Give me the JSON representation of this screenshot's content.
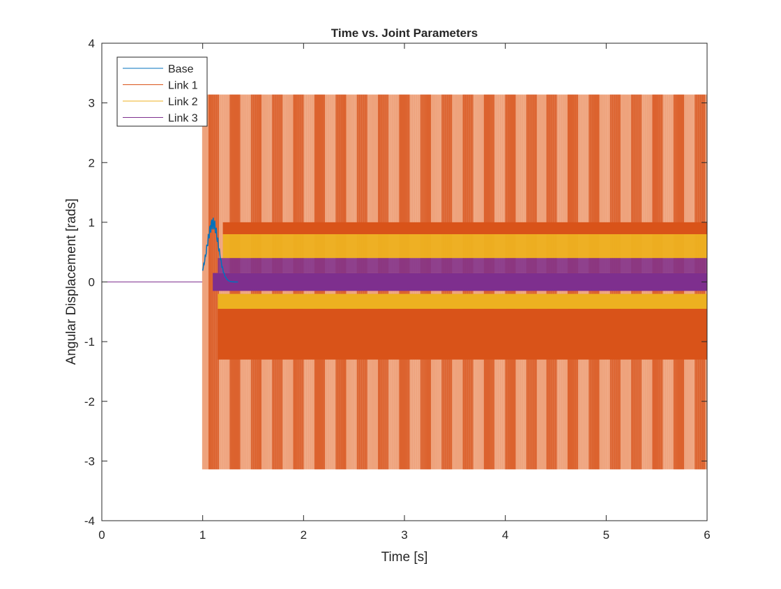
{
  "chart_data": {
    "type": "line",
    "title": "Time vs. Joint Parameters",
    "xlabel": "Time [s]",
    "ylabel": "Angular Displacement [rads]",
    "xlim": [
      0,
      6
    ],
    "ylim": [
      -4,
      4
    ],
    "xticks": [
      "0",
      "1",
      "2",
      "3",
      "4",
      "5",
      "6"
    ],
    "yticks": [
      "-4",
      "-3",
      "-2",
      "-1",
      "0",
      "1",
      "2",
      "3",
      "4"
    ],
    "grid": false,
    "legend_position": "top-left",
    "series": [
      {
        "name": "Base",
        "color": "#0072BD",
        "behavior": "0 until t=1, transient peak near 1.1 rad at t=1.1, then oscillates within the other bands"
      },
      {
        "name": "Link 1",
        "color": "#D95319",
        "behavior": "0 until t=1, then rapid oscillation spanning -3.14 to 3.14, dense bands 0.8 to 1.0 and -0.45 to -1.3",
        "envelope": [
          -3.14,
          3.14
        ]
      },
      {
        "name": "Link 2",
        "color": "#EDB120",
        "behavior": "0 until t=1, then dense bands 0.4 to 0.8 and -0.2 to -0.45",
        "envelope": [
          -0.45,
          0.8
        ]
      },
      {
        "name": "Link 3",
        "color": "#7E2F8E",
        "behavior": "0 until t=1, then oscillation -0.15 to 0.4",
        "envelope": [
          -0.15,
          0.4
        ]
      }
    ]
  }
}
